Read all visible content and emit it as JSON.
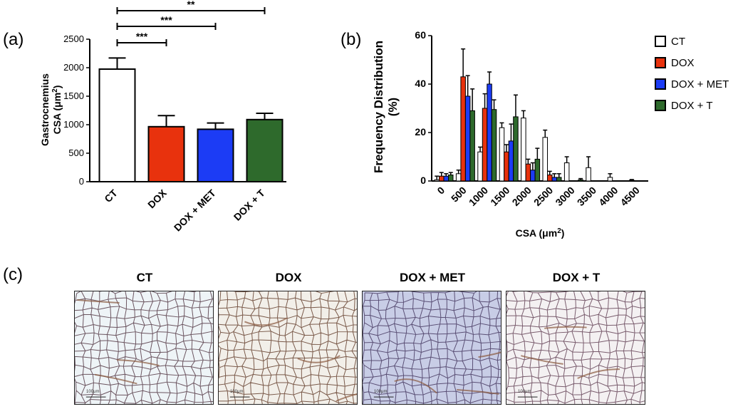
{
  "panels": {
    "a_label": "(a)",
    "b_label": "(b)",
    "c_label": "(c)"
  },
  "chart_data": [
    {
      "type": "bar",
      "ylabel_line1": "Gastrocnemius",
      "ylabel_line2_prefix": "CSA (",
      "ylabel_unit": "μm",
      "ylabel_sup": "2",
      "ylabel_suffix": ")",
      "ylim": [
        0,
        2500
      ],
      "yticks": [
        0,
        500,
        1000,
        1500,
        2000,
        2500
      ],
      "categories": [
        "CT",
        "DOX",
        "DOX + MET",
        "DOX + T"
      ],
      "values": [
        1975,
        965,
        920,
        1090
      ],
      "errors": [
        195,
        195,
        110,
        110
      ],
      "colors": [
        "#ffffff",
        "#e8320d",
        "#1c3cf5",
        "#2e6a2c"
      ],
      "significance": [
        {
          "from": 0,
          "to": 1,
          "label": "***"
        },
        {
          "from": 0,
          "to": 2,
          "label": "***"
        },
        {
          "from": 0,
          "to": 3,
          "label": "**"
        }
      ]
    },
    {
      "type": "bar",
      "ylabel_line1": "Frequency  Distribution",
      "ylabel_line2": "(%)",
      "xlabel_prefix": "CSA (",
      "xlabel_unit": "μm",
      "xlabel_sup": "2",
      "xlabel_suffix": ")",
      "ylim": [
        0,
        60
      ],
      "yticks": [
        0,
        20,
        40,
        60
      ],
      "xticks": [
        "0",
        "500",
        "1000",
        "1500",
        "2000",
        "2500",
        "3000",
        "3500",
        "4000",
        "4500"
      ],
      "legend_position": "right",
      "series": [
        {
          "name": "CT",
          "color": "#ffffff",
          "values": [
            0.5,
            3,
            12,
            22,
            26,
            18,
            7.5,
            5.5,
            1.5,
            0.3
          ],
          "errors": [
            1.5,
            1.5,
            2,
            2,
            3,
            3,
            2.5,
            4.5,
            1.5,
            0.3
          ]
        },
        {
          "name": "DOX",
          "color": "#e8320d",
          "values": [
            2,
            43,
            30,
            12,
            7,
            2.5,
            0,
            0,
            0,
            0
          ],
          "errors": [
            1.5,
            11.5,
            6,
            3,
            2,
            1.5,
            0,
            0,
            0,
            0
          ]
        },
        {
          "name": "DOX + MET",
          "color": "#1c3cf5",
          "values": [
            2,
            35,
            40,
            16.5,
            4.5,
            1.5,
            0,
            0,
            0,
            0
          ],
          "errors": [
            1,
            8.5,
            5,
            7,
            3,
            1.5,
            0,
            0,
            0,
            0
          ]
        },
        {
          "name": "DOX + T",
          "color": "#2e6a2c",
          "values": [
            2.5,
            29,
            29.5,
            26.5,
            9,
            1.5,
            0.5,
            0,
            0,
            0
          ],
          "errors": [
            1,
            9,
            4,
            9,
            4.5,
            1.5,
            0.5,
            0,
            0,
            0
          ]
        }
      ]
    }
  ],
  "micrographs": [
    {
      "title": "CT",
      "scale": "100μm",
      "bg": "#eef4f7"
    },
    {
      "title": "DOX",
      "scale": "100μm",
      "bg": "#f2efe9"
    },
    {
      "title": "DOX + MET",
      "scale": "100μm",
      "bg": "#c8cde6"
    },
    {
      "title": "DOX + T",
      "scale": "100μm",
      "bg": "#f4f1f2"
    }
  ]
}
